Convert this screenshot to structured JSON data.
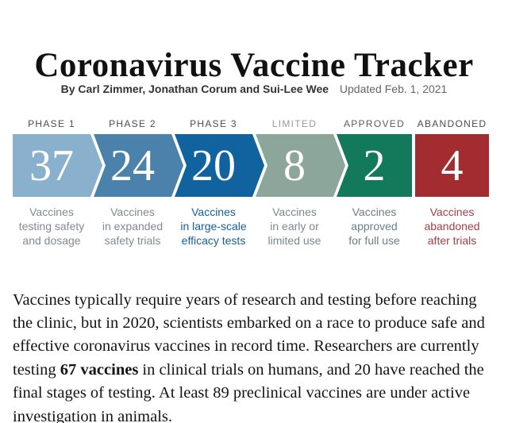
{
  "header": {
    "title": "Coronavirus Vaccine Tracker",
    "byline": "By Carl Zimmer, Jonathan Corum and Sui-Lee Wee",
    "updated": "Updated Feb. 1, 2021"
  },
  "chart_data": {
    "type": "chevron-funnel",
    "title": "Coronavirus Vaccine Tracker",
    "value_text_color": "#ffffff",
    "stages": [
      {
        "label": "PHASE 1",
        "value": 37,
        "caption": [
          "Vaccines",
          "testing safety",
          "and dosage"
        ],
        "color": "#89b0cc",
        "label_color": "#4c4c4c",
        "caption_color": "#7f8b91"
      },
      {
        "label": "PHASE 2",
        "value": 24,
        "caption": [
          "Vaccines",
          "in expanded",
          "safety trials"
        ],
        "color": "#4a82ac",
        "label_color": "#4c4c4c",
        "caption_color": "#7f8b91"
      },
      {
        "label": "PHASE 3",
        "value": 20,
        "caption": [
          "Vaccines",
          "in large-scale",
          "efficacy tests"
        ],
        "color": "#11639f",
        "label_color": "#4c4c4c",
        "caption_color": "#135f9c"
      },
      {
        "label": "LIMITED",
        "value": 8,
        "caption": [
          "Vaccines",
          "in early or",
          "limited use"
        ],
        "color": "#8ca69c",
        "label_color": "#9a9a9a",
        "caption_color": "#78898d"
      },
      {
        "label": "APPROVED",
        "value": 2,
        "caption": [
          "Vaccines",
          "approved",
          "for full use"
        ],
        "color": "#12795b",
        "label_color": "#5d5d5d",
        "caption_color": "#6b7e84"
      },
      {
        "label": "ABANDONED",
        "value": 4,
        "caption": [
          "Vaccines",
          "abandoned",
          "after trials"
        ],
        "color": "#a32c30",
        "label_color": "#4c4c4c",
        "caption_color": "#a63f44"
      }
    ]
  },
  "article": {
    "intro_before": "Vaccines typically require years of research and testing before reaching the clinic, but in 2020, scientists embarked on a race to produce safe and effective coronavirus vaccines in record time. Researchers are currently testing ",
    "intro_bold": "67 vaccines",
    "intro_after": " in clinical trials on humans, and 20 have reached the final stages of testing. At least 89 preclinical vaccines are under active investigation in animals."
  }
}
